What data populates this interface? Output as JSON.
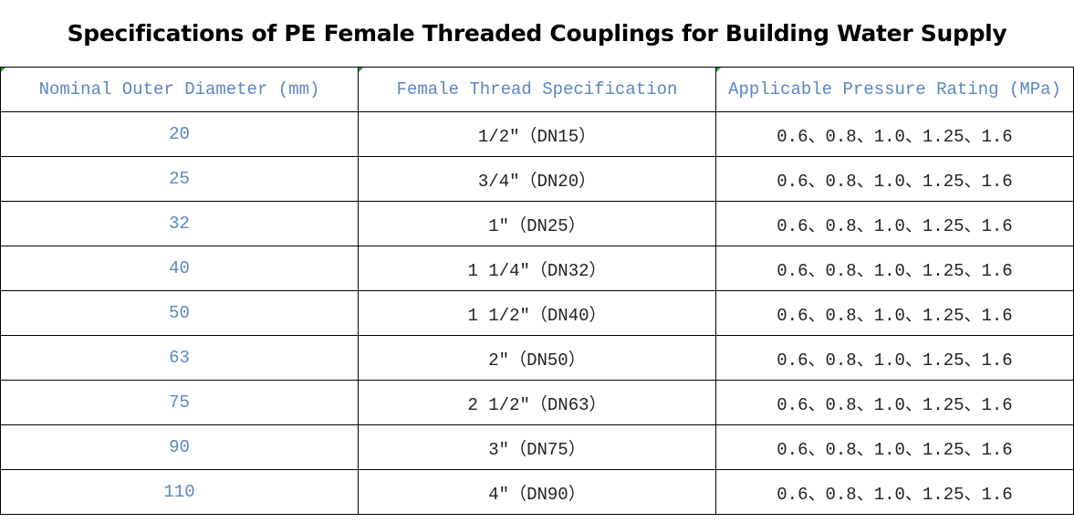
{
  "title": "Specifications of PE Female Threaded Couplings for Building Water Supply",
  "headers": [
    "Nominal Outer Diameter (mm)",
    "Female Thread Specification",
    "Applicable Pressure Rating (MPa)"
  ],
  "rows": [
    [
      "20",
      "1/2″（DN15）",
      "0.6、0.8、1.0、1.25、1.6"
    ],
    [
      "25",
      "3/4″（DN20）",
      "0.6、0.8、1.0、1.25、1.6"
    ],
    [
      "32",
      "1″（DN25）",
      "0.6、0.8、1.0、1.25、1.6"
    ],
    [
      "40",
      "1 1/4″（DN32）",
      "0.6、0.8、1.0、1.25、1.6"
    ],
    [
      "50",
      "1 1/2″（DN40）",
      "0.6、0.8、1.0、1.25、1.6"
    ],
    [
      "63",
      "2″（DN50）",
      "0.6、0.8、1.0、1.25、1.6"
    ],
    [
      "75",
      "2 1/2″（DN63）",
      "0.6、0.8、1.0、1.25、1.6"
    ],
    [
      "90",
      "3″（DN75）",
      "0.6、0.8、1.0、1.25、1.6"
    ],
    [
      "110",
      "4″（DN90）",
      "0.6、0.8、1.0、1.25、1.6"
    ]
  ],
  "colors": {
    "header_text": "#5b86c2",
    "diameter_text": "#5b86c2",
    "body_text": "#222222",
    "border": "#000000"
  }
}
